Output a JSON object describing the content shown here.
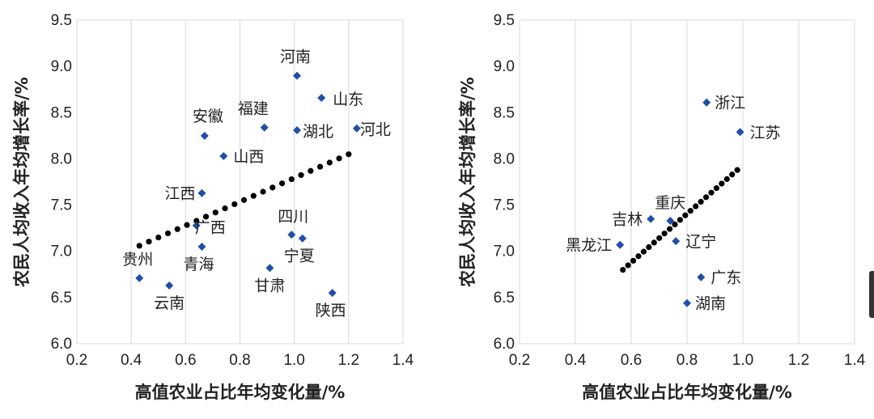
{
  "chart_data": [
    {
      "type": "scatter",
      "xlabel": "高值农业占比年均变化量/%",
      "ylabel": "农民人均收入年均增长率/%",
      "xlim": [
        0.2,
        1.4
      ],
      "ylim": [
        6.0,
        9.5
      ],
      "xticks": [
        "0.2",
        "0.4",
        "0.6",
        "0.8",
        "1.0",
        "1.2",
        "1.4"
      ],
      "yticks": [
        "6.0",
        "6.5",
        "7.0",
        "7.5",
        "8.0",
        "8.5",
        "9.0",
        "9.5"
      ],
      "grid": "vertical",
      "trendline": {
        "style": "dotted",
        "x": [
          0.43,
          1.2
        ],
        "y": [
          7.06,
          8.05
        ]
      },
      "points": [
        {
          "label": "河南",
          "x": 1.01,
          "y": 8.9
        },
        {
          "label": "山东",
          "x": 1.1,
          "y": 8.66
        },
        {
          "label": "福建",
          "x": 0.89,
          "y": 8.34
        },
        {
          "label": "湖北",
          "x": 1.01,
          "y": 8.31
        },
        {
          "label": "河北",
          "x": 1.23,
          "y": 8.33
        },
        {
          "label": "安徽",
          "x": 0.67,
          "y": 8.25
        },
        {
          "label": "山西",
          "x": 0.74,
          "y": 8.03
        },
        {
          "label": "江西",
          "x": 0.66,
          "y": 7.63
        },
        {
          "label": "广西",
          "x": 0.64,
          "y": 7.28
        },
        {
          "label": "四川",
          "x": 0.99,
          "y": 7.18
        },
        {
          "label": "宁夏",
          "x": 1.03,
          "y": 7.14
        },
        {
          "label": "青海",
          "x": 0.66,
          "y": 7.05
        },
        {
          "label": "贵州",
          "x": 0.43,
          "y": 6.71
        },
        {
          "label": "甘肃",
          "x": 0.91,
          "y": 6.82
        },
        {
          "label": "云南",
          "x": 0.54,
          "y": 6.63
        },
        {
          "label": "陕西",
          "x": 1.14,
          "y": 6.55
        }
      ]
    },
    {
      "type": "scatter",
      "xlabel": "高值农业占比年均变化量/%",
      "ylabel": "农民人均收入年均增长率/%",
      "xlim": [
        0.2,
        1.4
      ],
      "ylim": [
        6.0,
        9.5
      ],
      "xticks": [
        "0.2",
        "0.4",
        "0.6",
        "0.8",
        "1.0",
        "1.2",
        "1.4"
      ],
      "yticks": [
        "6.0",
        "6.5",
        "7.0",
        "7.5",
        "8.0",
        "8.5",
        "9.0",
        "9.5"
      ],
      "grid": "vertical",
      "trendline": {
        "style": "dotted",
        "x": [
          0.57,
          0.98
        ],
        "y": [
          6.8,
          7.88
        ]
      },
      "points": [
        {
          "label": "浙江",
          "x": 0.87,
          "y": 8.61
        },
        {
          "label": "江苏",
          "x": 0.99,
          "y": 8.29
        },
        {
          "label": "吉林",
          "x": 0.67,
          "y": 7.35
        },
        {
          "label": "重庆",
          "x": 0.74,
          "y": 7.33
        },
        {
          "label": "黑龙江",
          "x": 0.56,
          "y": 7.07
        },
        {
          "label": "辽宁",
          "x": 0.76,
          "y": 7.11
        },
        {
          "label": "广东",
          "x": 0.85,
          "y": 6.72
        },
        {
          "label": "湖南",
          "x": 0.8,
          "y": 6.44
        }
      ]
    }
  ]
}
